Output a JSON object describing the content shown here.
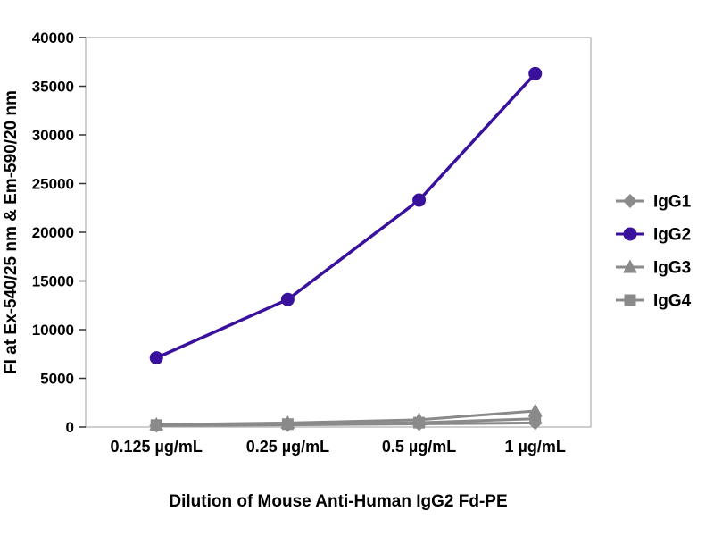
{
  "chart_data": {
    "type": "line",
    "title": "",
    "xlabel": "Dilution of Mouse Anti-Human IgG2 Fd-PE",
    "ylabel": "FI at Ex-540/25 nm & Em-590/20 nm",
    "categories": [
      "0.125 µg/mL",
      "0.25 µg/mL",
      "0.5 µg/mL",
      "1 µg/mL"
    ],
    "ylim": [
      0,
      40000
    ],
    "y_tick_step": 5000,
    "y_ticks": [
      0,
      5000,
      10000,
      15000,
      20000,
      25000,
      30000,
      35000,
      40000
    ],
    "grid": false,
    "legend_position": "right",
    "plot_border_color": "#b3b3b3",
    "tick_color": "#333333",
    "series": [
      {
        "name": "IgG1",
        "marker": "diamond",
        "color": "#8a8a8a",
        "values": [
          150,
          220,
          320,
          420
        ]
      },
      {
        "name": "IgG2",
        "marker": "circle",
        "color": "#3a119c",
        "values": [
          7100,
          13100,
          23300,
          36300
        ]
      },
      {
        "name": "IgG3",
        "marker": "triangle",
        "color": "#8a8a8a",
        "values": [
          250,
          420,
          750,
          1650
        ]
      },
      {
        "name": "IgG4",
        "marker": "square",
        "color": "#8a8a8a",
        "values": [
          200,
          300,
          450,
          850
        ]
      }
    ]
  }
}
